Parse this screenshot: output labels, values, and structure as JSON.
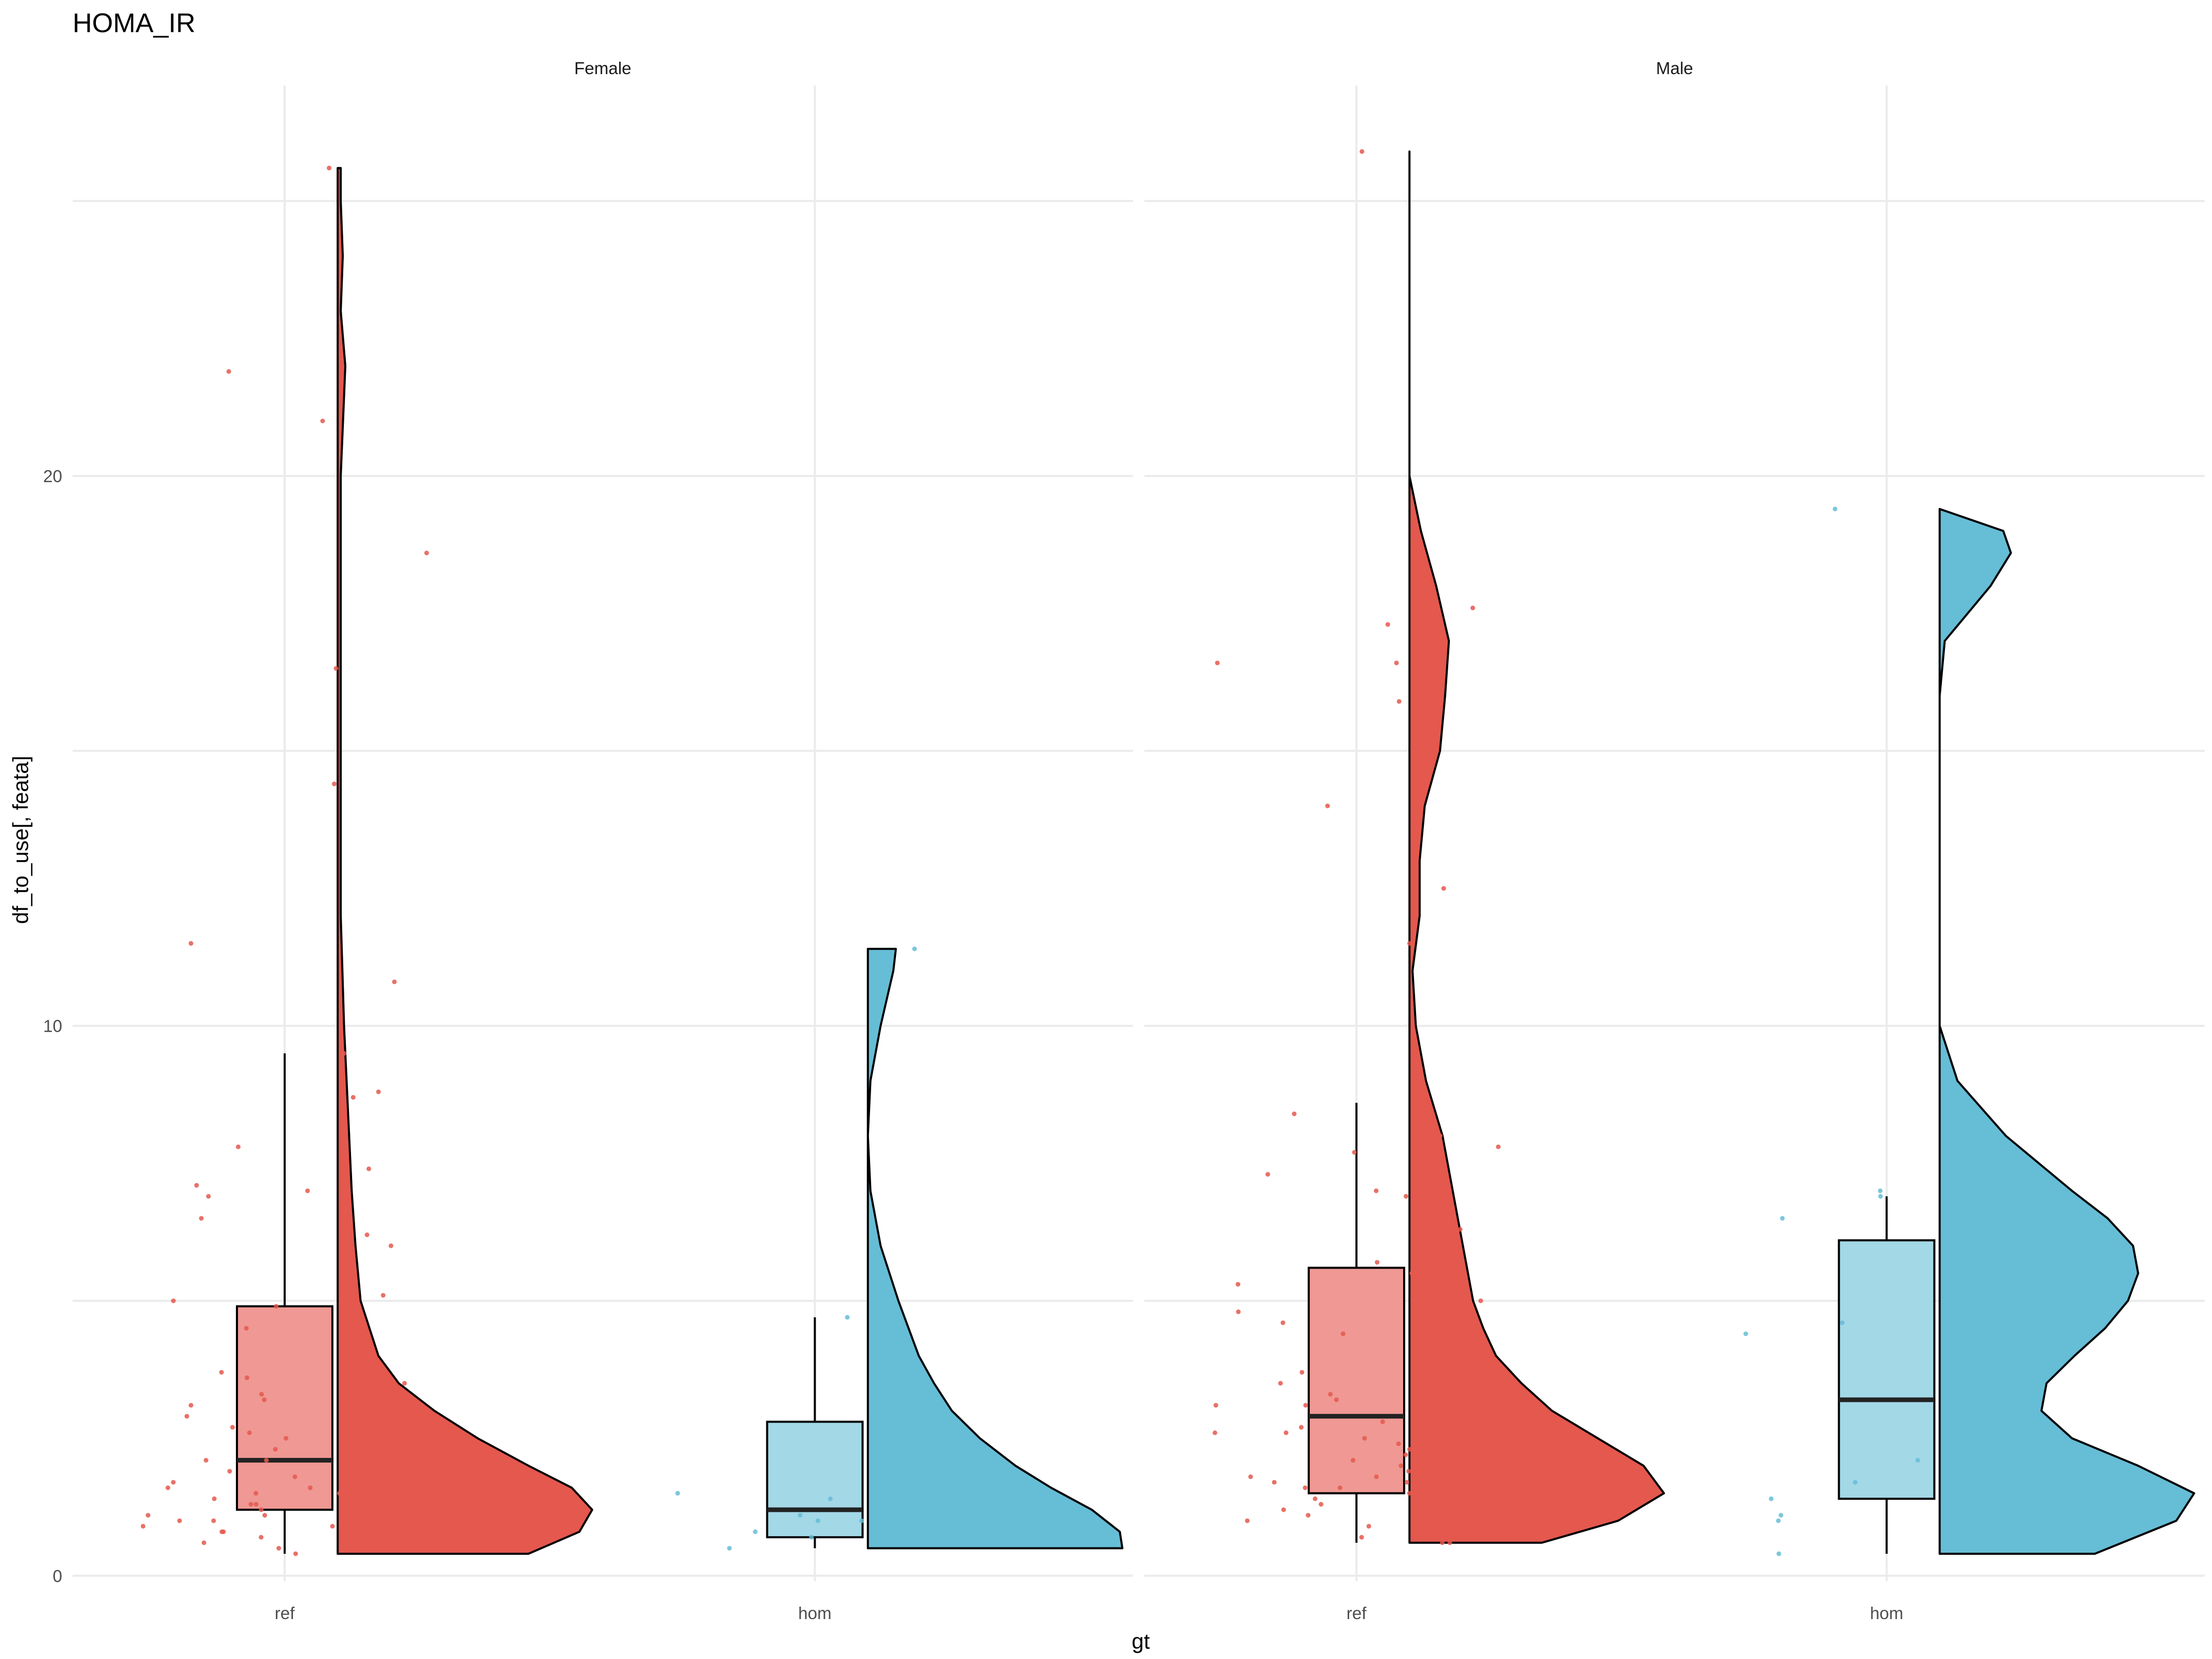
{
  "chart_data": {
    "type": "raincloud",
    "title": "HOMA_IR",
    "xlabel": "gt",
    "ylabel": "df_to_use[, feata]",
    "ylim": [
      -0.1,
      27.1
    ],
    "yticks": [
      0,
      10,
      20
    ],
    "categories": [
      "ref",
      "hom"
    ],
    "colors": {
      "ref": "#E4584E",
      "hom": "#66BDD6"
    },
    "box_colors": {
      "ref": "#EF9894",
      "hom": "#A3D8E6"
    },
    "grid": true,
    "panels": [
      {
        "name": "Female",
        "groups": [
          {
            "label": "ref",
            "box": {
              "whisker_low": 0.4,
              "q1": 1.2,
              "median": 2.1,
              "q3": 4.9,
              "whisker_high": 9.5
            },
            "violin": {
              "min": 0.4,
              "max": 25.6,
              "y": [
                0.4,
                0.8,
                1.2,
                1.6,
                2.0,
                2.5,
                3.0,
                3.5,
                4.0,
                5.0,
                6.0,
                7.0,
                8.0,
                9.0,
                10.0,
                12.0,
                13.0,
                15.0,
                18.0,
                20.0,
                22.0,
                23.0,
                24.0,
                25.0,
                25.6
              ],
              "density": [
                0.75,
                0.95,
                1.0,
                0.92,
                0.75,
                0.55,
                0.38,
                0.24,
                0.16,
                0.09,
                0.07,
                0.055,
                0.045,
                0.035,
                0.025,
                0.012,
                0.012,
                0.012,
                0.012,
                0.012,
                0.03,
                0.012,
                0.02,
                0.012,
                0.012
              ]
            },
            "points": [
              25.6,
              21.9,
              21.0,
              18.6,
              16.5,
              14.4,
              11.5,
              10.8,
              9.5,
              8.8,
              8.7,
              7.8,
              7.4,
              7.1,
              7.0,
              6.9,
              6.5,
              6.2,
              6.0,
              5.1,
              5.0,
              4.9,
              4.8,
              4.5,
              3.7,
              3.6,
              3.5,
              3.4,
              3.3,
              3.2,
              3.2,
              3.1,
              2.9,
              2.7,
              2.6,
              2.5,
              2.4,
              2.3,
              2.2,
              2.1,
              2.1,
              2.0,
              2.0,
              1.9,
              1.8,
              1.8,
              1.7,
              1.7,
              1.6,
              1.6,
              1.5,
              1.5,
              1.4,
              1.4,
              1.3,
              1.3,
              1.2,
              1.2,
              1.1,
              1.1,
              1.0,
              1.0,
              0.9,
              0.9,
              0.8,
              0.8,
              0.7,
              0.6,
              0.5,
              0.5,
              0.4
            ]
          },
          {
            "label": "hom",
            "box": {
              "whisker_low": 0.5,
              "q1": 0.7,
              "median": 1.2,
              "q3": 2.8,
              "whisker_high": 4.7
            },
            "violin": {
              "min": 0.5,
              "max": 11.4,
              "y": [
                0.5,
                0.8,
                1.2,
                1.6,
                2.0,
                2.5,
                3.0,
                3.5,
                4.0,
                5.0,
                6.0,
                7.0,
                8.0,
                9.0,
                10.0,
                11.0,
                11.4
              ],
              "density": [
                1.0,
                0.99,
                0.88,
                0.72,
                0.58,
                0.44,
                0.33,
                0.26,
                0.2,
                0.12,
                0.05,
                0.01,
                0.0,
                0.01,
                0.05,
                0.1,
                0.11
              ]
            },
            "points": [
              11.4,
              4.7,
              3.2,
              1.5,
              1.4,
              1.1,
              1.0,
              1.0,
              0.8,
              0.7,
              0.6,
              0.5
            ]
          }
        ]
      },
      {
        "name": "Male",
        "groups": [
          {
            "label": "ref",
            "box": {
              "whisker_low": 0.6,
              "q1": 1.5,
              "median": 2.9,
              "q3": 5.6,
              "whisker_high": 8.6
            },
            "violin": {
              "min": 0.6,
              "max": 25.9,
              "y": [
                0.6,
                1.0,
                1.5,
                2.0,
                2.5,
                3.0,
                3.5,
                4.0,
                4.5,
                5.0,
                6.0,
                7.0,
                8.0,
                9.0,
                10.0,
                11.0,
                12.0,
                13.0,
                14.0,
                15.0,
                16.0,
                17.0,
                18.0,
                19.0,
                20.0,
                22.0,
                24.0,
                25.9
              ],
              "density": [
                0.52,
                0.82,
                1.0,
                0.92,
                0.74,
                0.56,
                0.44,
                0.34,
                0.29,
                0.25,
                0.21,
                0.17,
                0.13,
                0.065,
                0.025,
                0.012,
                0.04,
                0.04,
                0.06,
                0.12,
                0.14,
                0.155,
                0.105,
                0.045,
                0.0,
                0.0,
                0.0,
                0.0
              ]
            },
            "points": [
              25.9,
              17.6,
              17.3,
              16.6,
              16.6,
              15.9,
              14.0,
              12.5,
              11.5,
              8.4,
              8.0,
              7.8,
              7.7,
              7.3,
              7.0,
              6.9,
              6.3,
              5.7,
              5.5,
              5.3,
              5.0,
              4.8,
              4.6,
              4.4,
              4.0,
              3.7,
              3.6,
              3.5,
              3.3,
              3.3,
              3.2,
              3.1,
              3.1,
              3.0,
              2.9,
              2.9,
              2.8,
              2.8,
              2.7,
              2.7,
              2.6,
              2.6,
              2.5,
              2.4,
              2.3,
              2.2,
              2.1,
              2.0,
              1.9,
              1.9,
              1.8,
              1.8,
              1.7,
              1.7,
              1.6,
              1.6,
              1.5,
              1.4,
              1.3,
              1.2,
              1.1,
              1.0,
              0.9,
              0.9,
              0.8,
              0.7,
              0.6,
              0.6
            ]
          },
          {
            "label": "hom",
            "box": {
              "whisker_low": 0.4,
              "q1": 1.4,
              "median": 3.2,
              "q3": 6.1,
              "whisker_high": 6.9
            },
            "violin": {
              "min": 0.4,
              "max": 19.4,
              "y": [
                0.4,
                1.0,
                1.5,
                2.0,
                2.5,
                3.0,
                3.5,
                4.0,
                4.5,
                5.0,
                5.5,
                6.0,
                6.5,
                7.0,
                8.0,
                9.0,
                10.0,
                12.0,
                14.0,
                16.0,
                17.0,
                18.0,
                18.6,
                19.0,
                19.4
              ],
              "density": [
                0.61,
                0.93,
                1.0,
                0.78,
                0.52,
                0.4,
                0.42,
                0.53,
                0.65,
                0.74,
                0.78,
                0.76,
                0.66,
                0.52,
                0.26,
                0.07,
                0.0,
                0.0,
                0.0,
                0.0,
                0.02,
                0.2,
                0.28,
                0.25,
                0.0
              ]
            },
            "points": [
              19.4,
              7.0,
              6.9,
              6.5,
              5.2,
              4.6,
              4.4,
              2.1,
              1.7,
              1.4,
              1.1,
              1.0,
              0.4
            ]
          }
        ]
      }
    ]
  }
}
